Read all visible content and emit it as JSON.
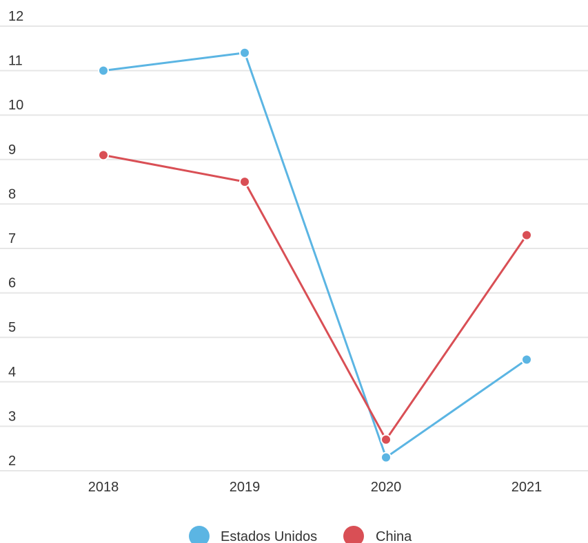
{
  "chart_data": {
    "type": "line",
    "categories": [
      "2018",
      "2019",
      "2020",
      "2021"
    ],
    "series": [
      {
        "name": "Estados Unidos",
        "color": "#5bb5e3",
        "values": [
          11.0,
          11.4,
          2.3,
          4.5
        ]
      },
      {
        "name": "China",
        "color": "#d94f55",
        "values": [
          9.1,
          8.5,
          2.7,
          7.3
        ]
      }
    ],
    "yticks": [
      2,
      3,
      4,
      5,
      6,
      7,
      8,
      9,
      10,
      11,
      12
    ],
    "ylim": [
      2,
      12
    ],
    "grid": true,
    "legend_position": "bottom-center"
  }
}
